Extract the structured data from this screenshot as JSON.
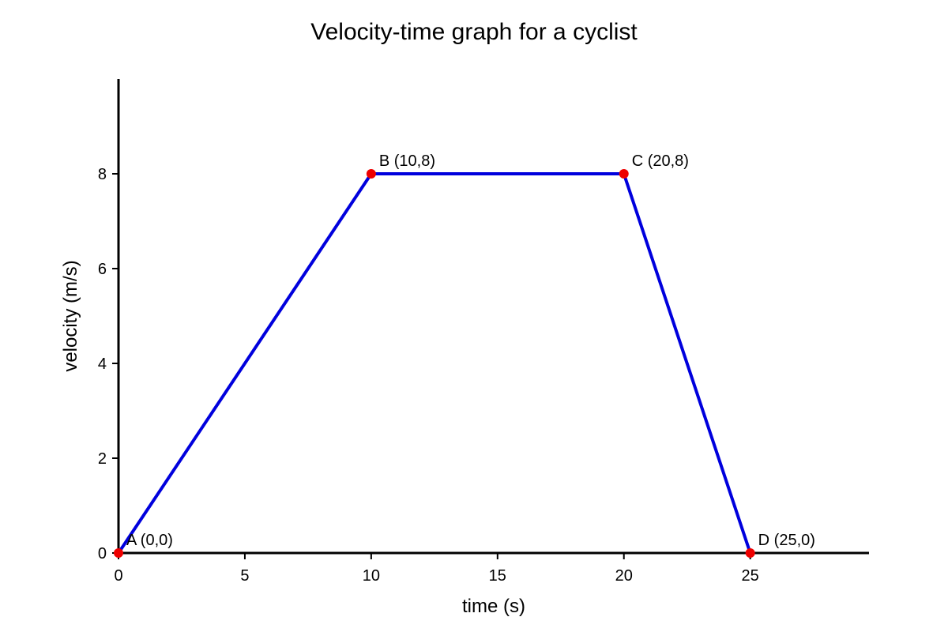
{
  "chart_data": {
    "type": "line",
    "title": "Velocity-time graph for a cyclist",
    "xlabel": "time (s)",
    "ylabel": "velocity (m/s)",
    "xlim": [
      0,
      29.7
    ],
    "ylim": [
      0,
      10
    ],
    "x_ticks": [
      0,
      5,
      10,
      15,
      20,
      25
    ],
    "y_ticks": [
      0,
      2,
      4,
      6,
      8
    ],
    "grid": false,
    "series": [
      {
        "x": [
          0,
          10,
          20,
          25
        ],
        "y": [
          0,
          8,
          8,
          0
        ],
        "color": "#0000dd",
        "point_labels": [
          "A (0,0)",
          "B (10,8)",
          "C (20,8)",
          "D (25,0)"
        ]
      }
    ],
    "point_color": "#ee0000",
    "axis_color": "#000000"
  }
}
